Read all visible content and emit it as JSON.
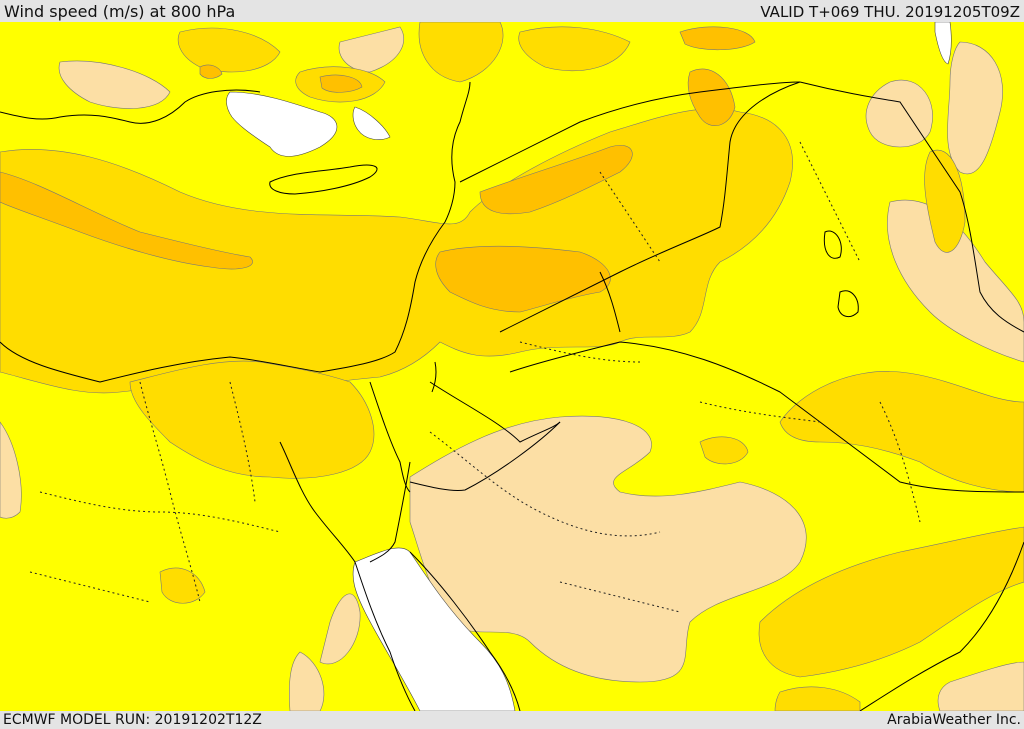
{
  "header": {
    "title": "Wind speed (m/s) at 800 hPa",
    "valid": "VALID T+069 THU. 20191205T09Z"
  },
  "footer": {
    "model_run": "ECMWF MODEL RUN: 20191202T12Z",
    "credit": "ArabiaWeather Inc."
  },
  "map": {
    "colors": {
      "calm": "#fcdfa5",
      "light": "#ffff00",
      "moderate": "#ffdd00",
      "strong": "#ffc000",
      "stronger": "#ffb000",
      "water_unshaded": "#ffffff",
      "border": "#000000"
    }
  }
}
